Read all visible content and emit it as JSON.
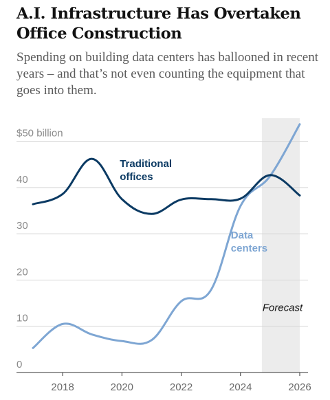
{
  "headline": "A.I. Infrastructure Has Overtaken Office Construction",
  "subhead": "Spending on building data centers has ballooned in recent years – and that’s not even counting the equipment that goes into them.",
  "chart_data": {
    "type": "line",
    "x": [
      2017,
      2018,
      2019,
      2020,
      2021,
      2022,
      2023,
      2024,
      2025,
      2026
    ],
    "series": [
      {
        "name": "Traditional offices",
        "label_lines": [
          "Traditional",
          "offices"
        ],
        "color": "#0b3a63",
        "values": [
          36.4,
          38.6,
          46.2,
          37.5,
          34.3,
          37.4,
          37.5,
          37.6,
          42.7,
          38.3
        ]
      },
      {
        "name": "Data centers",
        "label_lines": [
          "Data",
          "centers"
        ],
        "color": "#7ea6d3",
        "values": [
          5.3,
          10.5,
          8.2,
          6.8,
          7.0,
          15.4,
          17.8,
          36.0,
          42.5,
          53.7
        ]
      }
    ],
    "yticks": [
      {
        "value": 0,
        "label": "0"
      },
      {
        "value": 10,
        "label": "10"
      },
      {
        "value": 20,
        "label": "20"
      },
      {
        "value": 30,
        "label": "30"
      },
      {
        "value": 40,
        "label": "40"
      },
      {
        "value": 50,
        "label": "$50 billion"
      }
    ],
    "xticks": [
      {
        "value": 2018,
        "label": "2018"
      },
      {
        "value": 2020,
        "label": "2020"
      },
      {
        "value": 2022,
        "label": "2022"
      },
      {
        "value": 2024,
        "label": "2024"
      },
      {
        "value": 2026,
        "label": "2026"
      }
    ],
    "ylim": [
      0,
      55
    ],
    "xlim": [
      2017,
      2026
    ],
    "forecast": {
      "start": 2025,
      "end": 2026,
      "label": "Forecast",
      "shade_color": "#ececec"
    },
    "grid": true
  }
}
